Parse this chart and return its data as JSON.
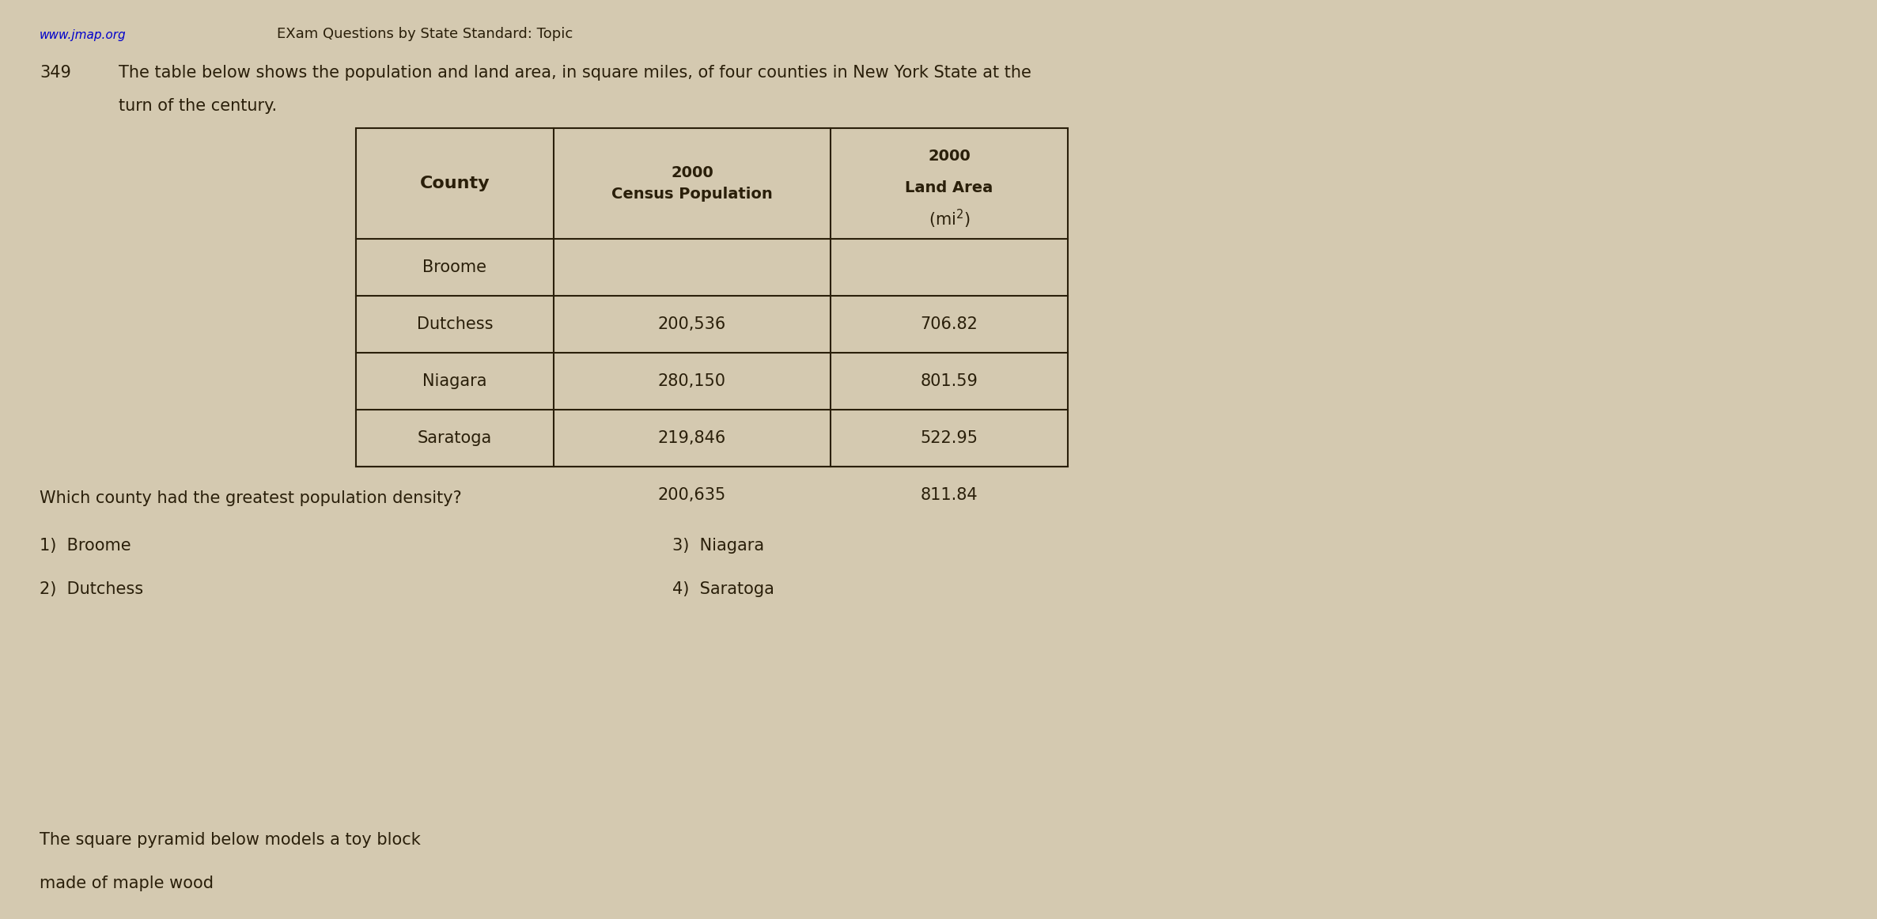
{
  "bg_color": "#d4c9b0",
  "header_line1": "www.jmap.org",
  "header_line2": "ЕXam Questions by State Standard: Topic",
  "question_number": "349",
  "question_text_line1": "The table below shows the population and land area, in square miles, of four counties in New York State at the",
  "question_text_line2": "turn of the century.",
  "table_headers": [
    "County",
    "2000\nCensus Population",
    "2000\nLand Area\n(mi²)"
  ],
  "table_rows": [
    [
      "Broome",
      "",
      ""
    ],
    [
      "Dutchess",
      "200,536",
      "706.82"
    ],
    [
      "Niagara",
      "280,150",
      "801.59"
    ],
    [
      "Saratoga",
      "219,846",
      "522.95"
    ],
    [
      "",
      "200,635",
      "811.84"
    ]
  ],
  "question_prompt": "Which county had the greatest population density?",
  "answers": [
    "1) Broome",
    "2) Dutchess",
    "3) Niagara",
    "4) Saratoga"
  ],
  "footer_line1": "The square pyramid below models a toy block",
  "footer_line2": "made of maple wood",
  "text_color": "#2a1f0a",
  "table_border_color": "#2a1f0a",
  "font_size_header": 13,
  "font_size_body": 15,
  "font_size_question": 15,
  "font_size_small": 12
}
